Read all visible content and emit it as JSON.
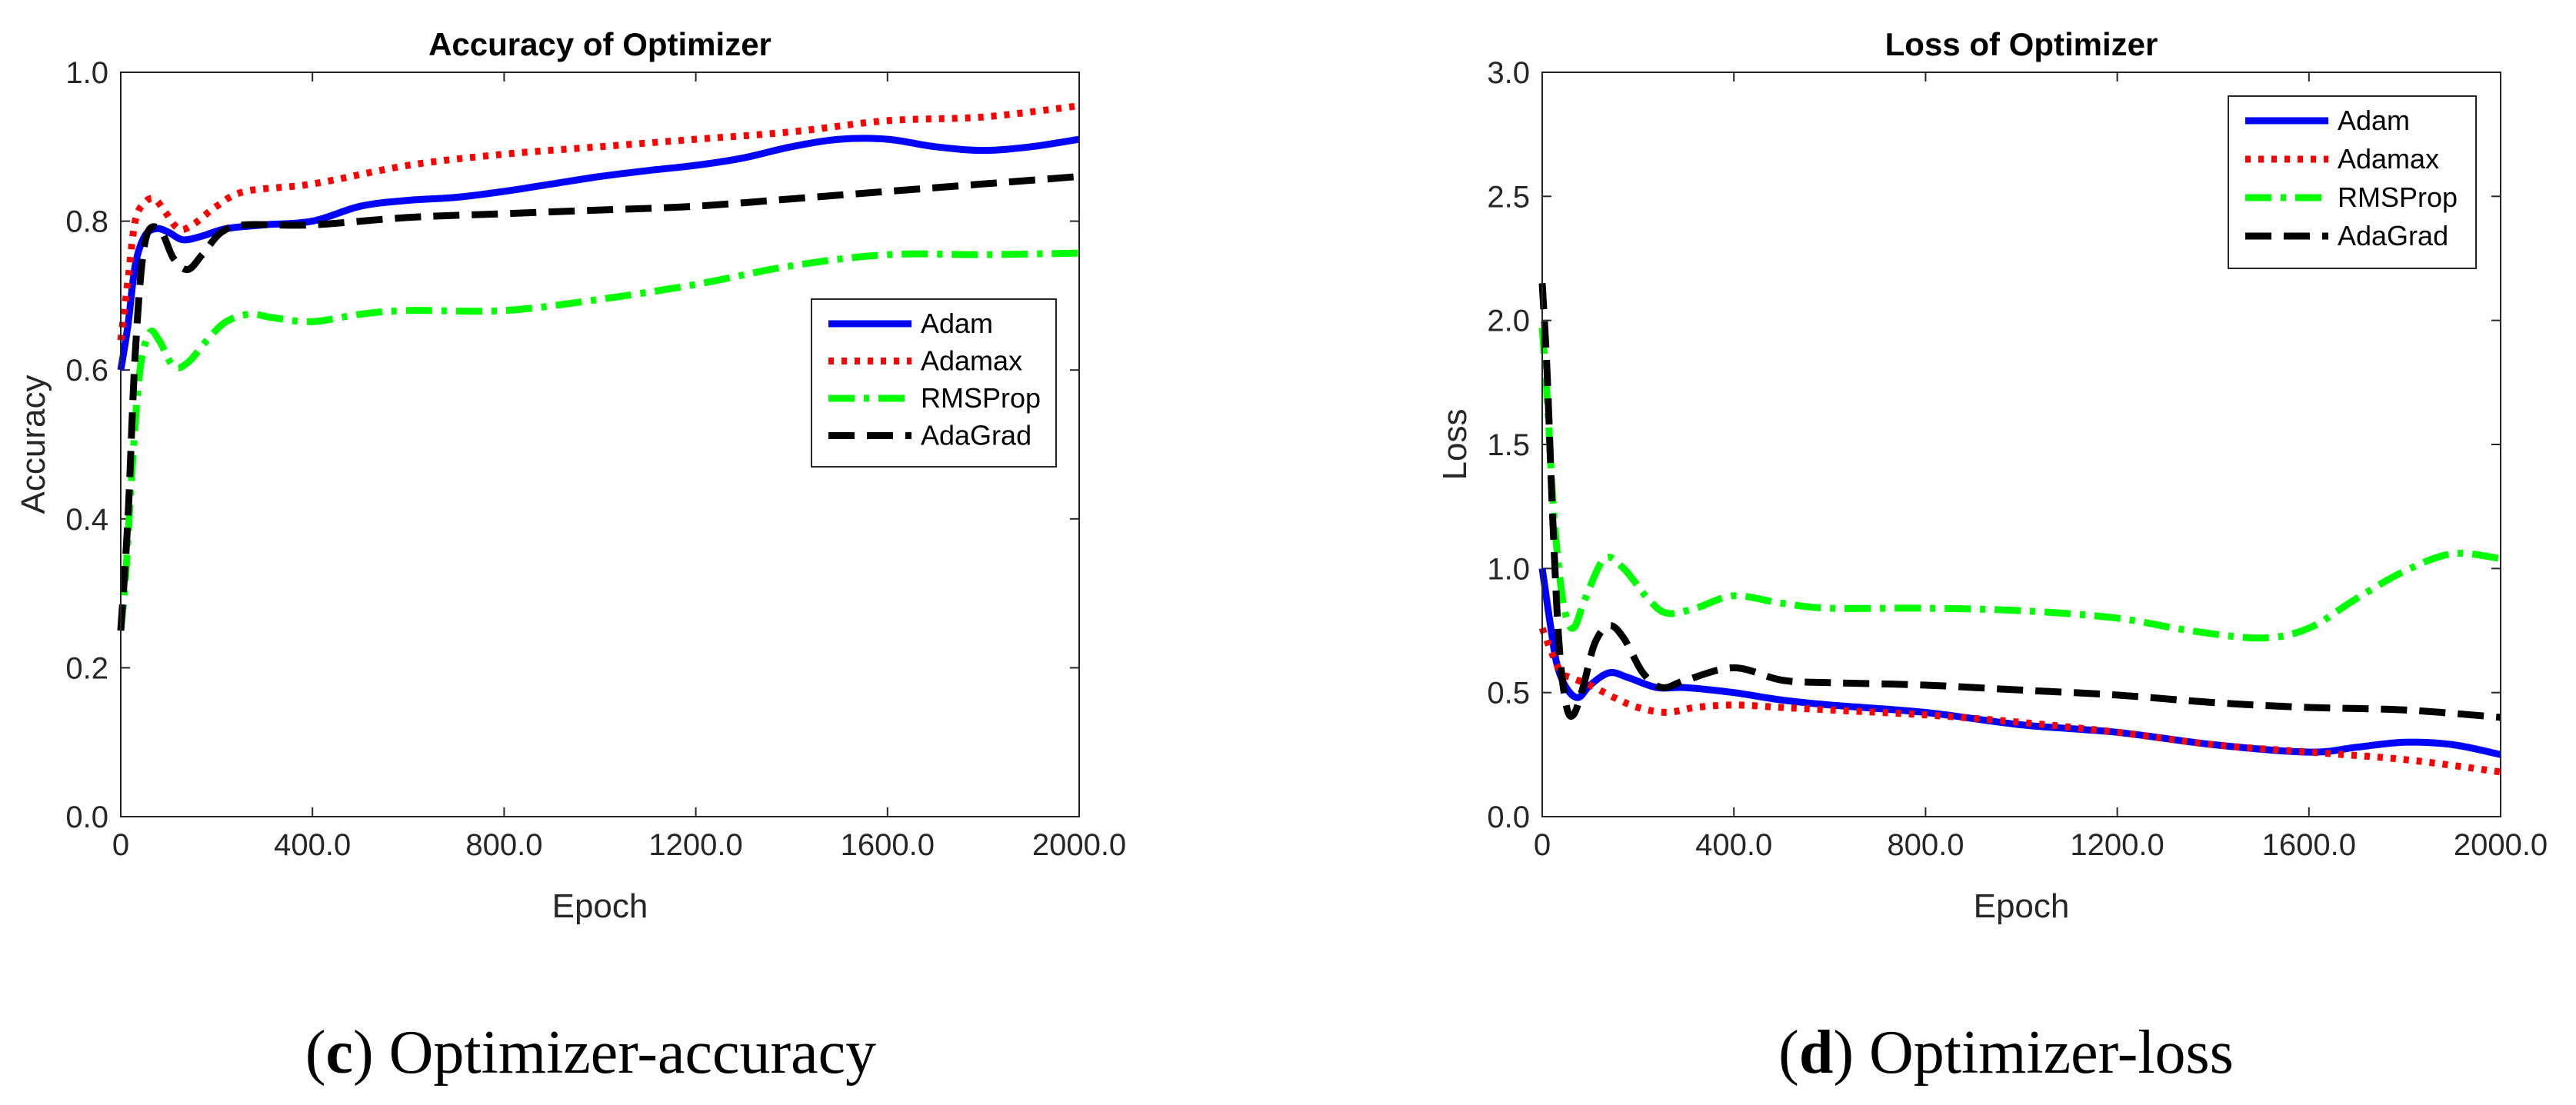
{
  "chart_data": [
    {
      "type": "line",
      "title": "Accuracy of Optimizer",
      "xlabel": "Epoch",
      "ylabel": "Accuracy",
      "xlim": [
        0,
        2000
      ],
      "ylim": [
        0,
        1
      ],
      "xticks": [
        0,
        400,
        800,
        1200,
        1600,
        2000
      ],
      "xtick_labels": [
        "0",
        "400.0",
        "800.0",
        "1200.0",
        "1600.0",
        "2000.0"
      ],
      "yticks": [
        0,
        0.2,
        0.4,
        0.6,
        0.8,
        1.0
      ],
      "ytick_labels": [
        "0.0",
        "0.2",
        "0.4",
        "0.6",
        "0.8",
        "1.0"
      ],
      "legend_position": "center-right",
      "caption_letter": "c",
      "caption_text": "Optimizer-accuracy",
      "series": [
        {
          "name": "Adam",
          "color": "#0000ff",
          "dash": "solid",
          "points": [
            [
              0,
              0.6
            ],
            [
              15,
              0.66
            ],
            [
              30,
              0.74
            ],
            [
              50,
              0.78
            ],
            [
              75,
              0.79
            ],
            [
              100,
              0.785
            ],
            [
              130,
              0.775
            ],
            [
              170,
              0.78
            ],
            [
              220,
              0.79
            ],
            [
              300,
              0.795
            ],
            [
              400,
              0.8
            ],
            [
              500,
              0.82
            ],
            [
              600,
              0.828
            ],
            [
              700,
              0.832
            ],
            [
              800,
              0.84
            ],
            [
              900,
              0.85
            ],
            [
              1000,
              0.86
            ],
            [
              1100,
              0.868
            ],
            [
              1200,
              0.875
            ],
            [
              1300,
              0.885
            ],
            [
              1400,
              0.9
            ],
            [
              1500,
              0.91
            ],
            [
              1600,
              0.91
            ],
            [
              1700,
              0.9
            ],
            [
              1800,
              0.895
            ],
            [
              1900,
              0.9
            ],
            [
              2000,
              0.91
            ]
          ]
        },
        {
          "name": "Adamax",
          "color": "#ff0000",
          "dash": "dot",
          "points": [
            [
              0,
              0.64
            ],
            [
              15,
              0.72
            ],
            [
              30,
              0.8
            ],
            [
              50,
              0.825
            ],
            [
              70,
              0.83
            ],
            [
              90,
              0.815
            ],
            [
              120,
              0.79
            ],
            [
              150,
              0.795
            ],
            [
              200,
              0.82
            ],
            [
              260,
              0.84
            ],
            [
              400,
              0.85
            ],
            [
              600,
              0.875
            ],
            [
              800,
              0.89
            ],
            [
              1000,
              0.9
            ],
            [
              1200,
              0.91
            ],
            [
              1400,
              0.92
            ],
            [
              1600,
              0.935
            ],
            [
              1800,
              0.94
            ],
            [
              2000,
              0.955
            ]
          ]
        },
        {
          "name": "RMSProp",
          "color": "#00ff00",
          "dash": "dashdot",
          "points": [
            [
              0,
              0.25
            ],
            [
              10,
              0.32
            ],
            [
              25,
              0.48
            ],
            [
              40,
              0.6
            ],
            [
              60,
              0.65
            ],
            [
              80,
              0.64
            ],
            [
              110,
              0.605
            ],
            [
              140,
              0.61
            ],
            [
              180,
              0.64
            ],
            [
              220,
              0.665
            ],
            [
              270,
              0.675
            ],
            [
              320,
              0.67
            ],
            [
              400,
              0.665
            ],
            [
              500,
              0.675
            ],
            [
              600,
              0.68
            ],
            [
              800,
              0.68
            ],
            [
              1000,
              0.695
            ],
            [
              1200,
              0.715
            ],
            [
              1400,
              0.74
            ],
            [
              1600,
              0.755
            ],
            [
              1800,
              0.755
            ],
            [
              2000,
              0.757
            ]
          ]
        },
        {
          "name": "AdaGrad",
          "color": "#000000",
          "dash": "dash",
          "points": [
            [
              0,
              0.25
            ],
            [
              15,
              0.4
            ],
            [
              30,
              0.62
            ],
            [
              50,
              0.77
            ],
            [
              80,
              0.79
            ],
            [
              110,
              0.75
            ],
            [
              140,
              0.735
            ],
            [
              170,
              0.755
            ],
            [
              210,
              0.785
            ],
            [
              260,
              0.795
            ],
            [
              400,
              0.795
            ],
            [
              600,
              0.805
            ],
            [
              800,
              0.81
            ],
            [
              1000,
              0.815
            ],
            [
              1200,
              0.82
            ],
            [
              1400,
              0.83
            ],
            [
              1600,
              0.84
            ],
            [
              1800,
              0.85
            ],
            [
              2000,
              0.86
            ]
          ]
        }
      ]
    },
    {
      "type": "line",
      "title": "Loss of Optimizer",
      "xlabel": "Epoch",
      "ylabel": "Loss",
      "xlim": [
        0,
        2000
      ],
      "ylim": [
        0,
        3
      ],
      "xticks": [
        0,
        400,
        800,
        1200,
        1600,
        2000
      ],
      "xtick_labels": [
        "0",
        "400.0",
        "800.0",
        "1200.0",
        "1600.0",
        "2000.0"
      ],
      "yticks": [
        0,
        0.5,
        1.0,
        1.5,
        2.0,
        2.5,
        3.0
      ],
      "ytick_labels": [
        "0.0",
        "0.5",
        "1.0",
        "1.5",
        "2.0",
        "2.5",
        "3.0"
      ],
      "legend_position": "top-right",
      "caption_letter": "d",
      "caption_text": "Optimizer-loss",
      "series": [
        {
          "name": "Adam",
          "color": "#0000ff",
          "dash": "solid",
          "points": [
            [
              0,
              1.0
            ],
            [
              15,
              0.8
            ],
            [
              30,
              0.62
            ],
            [
              50,
              0.52
            ],
            [
              75,
              0.48
            ],
            [
              100,
              0.53
            ],
            [
              140,
              0.58
            ],
            [
              180,
              0.56
            ],
            [
              240,
              0.52
            ],
            [
              300,
              0.52
            ],
            [
              400,
              0.5
            ],
            [
              500,
              0.47
            ],
            [
              600,
              0.45
            ],
            [
              800,
              0.42
            ],
            [
              1000,
              0.37
            ],
            [
              1200,
              0.34
            ],
            [
              1400,
              0.29
            ],
            [
              1600,
              0.26
            ],
            [
              1700,
              0.28
            ],
            [
              1800,
              0.3
            ],
            [
              1900,
              0.29
            ],
            [
              2000,
              0.25
            ]
          ]
        },
        {
          "name": "Adamax",
          "color": "#ff0000",
          "dash": "dot",
          "points": [
            [
              0,
              0.76
            ],
            [
              20,
              0.66
            ],
            [
              40,
              0.58
            ],
            [
              60,
              0.56
            ],
            [
              100,
              0.53
            ],
            [
              150,
              0.48
            ],
            [
              200,
              0.44
            ],
            [
              260,
              0.42
            ],
            [
              320,
              0.44
            ],
            [
              400,
              0.45
            ],
            [
              500,
              0.44
            ],
            [
              600,
              0.43
            ],
            [
              800,
              0.41
            ],
            [
              1000,
              0.38
            ],
            [
              1200,
              0.34
            ],
            [
              1400,
              0.29
            ],
            [
              1600,
              0.26
            ],
            [
              1800,
              0.23
            ],
            [
              2000,
              0.18
            ]
          ]
        },
        {
          "name": "RMSProp",
          "color": "#00ff00",
          "dash": "dashdot",
          "points": [
            [
              0,
              1.97
            ],
            [
              10,
              1.7
            ],
            [
              25,
              1.2
            ],
            [
              45,
              0.85
            ],
            [
              65,
              0.76
            ],
            [
              90,
              0.88
            ],
            [
              130,
              1.04
            ],
            [
              170,
              1.0
            ],
            [
              220,
              0.88
            ],
            [
              260,
              0.82
            ],
            [
              320,
              0.84
            ],
            [
              400,
              0.89
            ],
            [
              500,
              0.86
            ],
            [
              600,
              0.84
            ],
            [
              800,
              0.84
            ],
            [
              1000,
              0.83
            ],
            [
              1200,
              0.8
            ],
            [
              1350,
              0.75
            ],
            [
              1500,
              0.72
            ],
            [
              1600,
              0.76
            ],
            [
              1700,
              0.88
            ],
            [
              1800,
              0.99
            ],
            [
              1900,
              1.06
            ],
            [
              2000,
              1.04
            ]
          ]
        },
        {
          "name": "AdaGrad",
          "color": "#000000",
          "dash": "dash",
          "points": [
            [
              0,
              2.15
            ],
            [
              10,
              1.8
            ],
            [
              22,
              1.2
            ],
            [
              35,
              0.7
            ],
            [
              50,
              0.45
            ],
            [
              65,
              0.41
            ],
            [
              85,
              0.52
            ],
            [
              110,
              0.7
            ],
            [
              140,
              0.77
            ],
            [
              170,
              0.72
            ],
            [
              210,
              0.58
            ],
            [
              250,
              0.52
            ],
            [
              300,
              0.55
            ],
            [
              400,
              0.6
            ],
            [
              500,
              0.55
            ],
            [
              600,
              0.54
            ],
            [
              800,
              0.53
            ],
            [
              1000,
              0.51
            ],
            [
              1200,
              0.49
            ],
            [
              1400,
              0.46
            ],
            [
              1600,
              0.44
            ],
            [
              1800,
              0.43
            ],
            [
              2000,
              0.4
            ]
          ]
        }
      ]
    }
  ]
}
